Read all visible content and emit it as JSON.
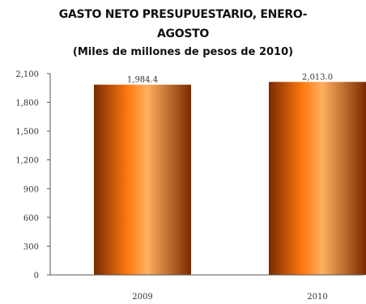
{
  "chart_data": {
    "type": "bar",
    "title_lines": [
      "GASTO NETO PRESUPUESTARIO, ENERO-",
      "AGOSTO"
    ],
    "subtitle": "(Miles de millones de pesos de 2010)",
    "categories": [
      "2009",
      "2010"
    ],
    "values": [
      1984.4,
      2013.0
    ],
    "value_labels": [
      "1,984.4",
      "2,013.0"
    ],
    "ylim": [
      0,
      2100
    ],
    "yticks": [
      0,
      300,
      600,
      900,
      1200,
      1500,
      1800,
      2100
    ],
    "ytick_labels": [
      "0",
      "300",
      "600",
      "900",
      "1,200",
      "1,500",
      "1,800",
      "2,100"
    ],
    "xlabel": "",
    "ylabel": "",
    "grid": false,
    "legend": "none",
    "colors": {
      "bar_edge": "#7a2a00",
      "bar_mid": "#ff7a10",
      "bar_highlight": "#ffb060",
      "axis": "#555555"
    }
  }
}
